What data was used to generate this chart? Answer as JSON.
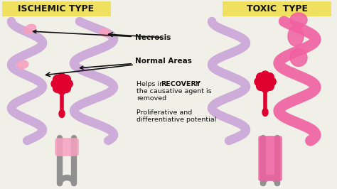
{
  "bg_color": "#f0f0e8",
  "title_left": "ISCHEMIC TYPE",
  "title_right": "TOXIC  TYPE",
  "title_bg": "#f0e060",
  "label_necrosis": "Necrosis",
  "label_normal": "Normal Areas",
  "label_recovery": "Helps in ",
  "label_recovery_bold": "RECOVERY",
  "label_recovery2": " if",
  "label_recovery3": "the causative agent is",
  "label_recovery4": "removed",
  "label_prolif": "Proliferative and",
  "label_diff": "differentiative potential",
  "purple_color": "#c8a0d8",
  "pink_color": "#f060a0",
  "light_pink": "#f8a0c0",
  "red_color": "#e00030",
  "dark_color": "#111111",
  "figsize": [
    4.74,
    2.66
  ],
  "dpi": 100
}
